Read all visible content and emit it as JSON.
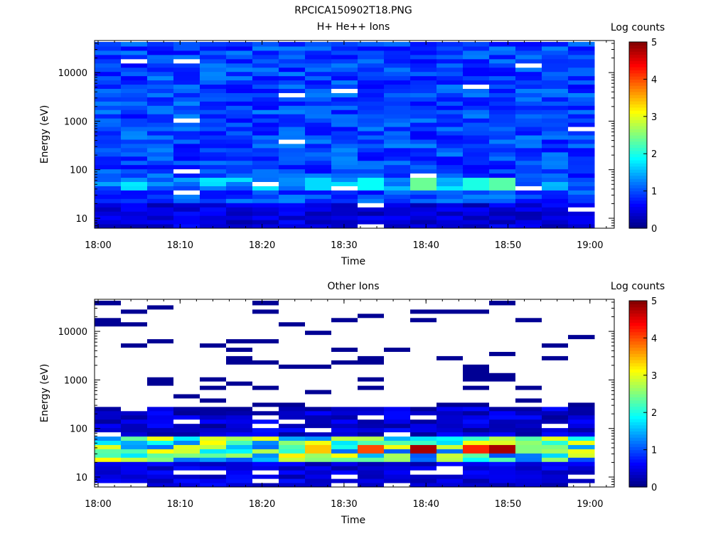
{
  "figure_title": "RPCICA150902T18.PNG",
  "chart_data": [
    {
      "type": "heatmap",
      "title": "H+ He++ Ions",
      "xlabel": "Time",
      "ylabel": "Energy (eV)",
      "x_ticks": [
        "18:00",
        "18:10",
        "18:20",
        "18:30",
        "18:40",
        "18:50",
        "19:00"
      ],
      "x_range": [
        "18:00",
        "19:03"
      ],
      "y_scale": "log",
      "y_ticks": [
        "10",
        "100",
        "1000",
        "10000"
      ],
      "y_range": [
        6,
        50000
      ],
      "colorbar": {
        "label": "Log counts",
        "range": [
          0,
          5
        ],
        "ticks": [
          "0",
          "1",
          "2",
          "3",
          "4",
          "5"
        ]
      },
      "notable_bins": [
        {
          "time": "18:39",
          "energy_eV": 50,
          "log_counts": 2.4
        },
        {
          "time": "18:46",
          "energy_eV": 50,
          "log_counts": 2.0
        },
        {
          "time": "18:49",
          "energy_eV": 50,
          "log_counts": 2.3
        },
        {
          "time": "18:33",
          "energy_eV": 50,
          "log_counts": 1.9
        },
        {
          "time": "18:27",
          "energy_eV": 50,
          "log_counts": 1.7
        }
      ]
    },
    {
      "type": "heatmap",
      "title": "Other Ions",
      "xlabel": "Time",
      "ylabel": "Energy (eV)",
      "x_ticks": [
        "18:00",
        "18:10",
        "18:20",
        "18:30",
        "18:40",
        "18:50",
        "19:00"
      ],
      "x_range": [
        "18:00",
        "19:03"
      ],
      "y_scale": "log",
      "y_ticks": [
        "10",
        "100",
        "1000",
        "10000"
      ],
      "y_range": [
        6,
        50000
      ],
      "colorbar": {
        "label": "Log counts",
        "range": [
          0,
          5
        ],
        "ticks": [
          "0",
          "1",
          "2",
          "3",
          "4",
          "5"
        ]
      },
      "notable_bins": [
        {
          "time": "18:39",
          "energy_eV": 38,
          "log_counts": 4.8
        },
        {
          "time": "18:49",
          "energy_eV": 38,
          "log_counts": 4.8
        },
        {
          "time": "18:46",
          "energy_eV": 38,
          "log_counts": 4.2
        },
        {
          "time": "18:33",
          "energy_eV": 38,
          "log_counts": 4.0
        },
        {
          "time": "18:27",
          "energy_eV": 38,
          "log_counts": 3.4
        }
      ]
    }
  ]
}
